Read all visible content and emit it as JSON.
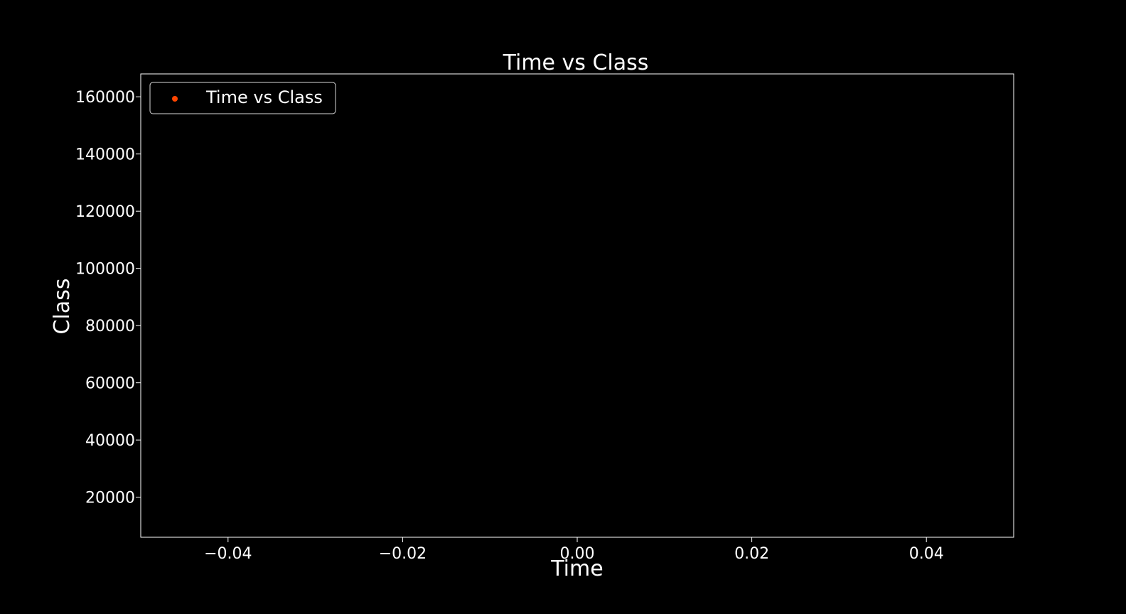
{
  "chart_data": {
    "type": "scatter",
    "title": "Time vs Class",
    "xlabel": "Time",
    "ylabel": "Class",
    "xlim": [
      -0.05,
      0.05
    ],
    "ylim": [
      6000,
      168000
    ],
    "xticks": [
      -0.04,
      -0.02,
      0.0,
      0.02,
      0.04
    ],
    "xtick_labels": [
      "−0.04",
      "−0.02",
      "0.00",
      "0.02",
      "0.04"
    ],
    "yticks": [
      20000,
      40000,
      60000,
      80000,
      100000,
      120000,
      140000,
      160000
    ],
    "ytick_labels": [
      "20000",
      "40000",
      "60000",
      "80000",
      "100000",
      "120000",
      "140000",
      "160000"
    ],
    "series": [
      {
        "name": "Time vs Class",
        "color": "#ff4500",
        "points": []
      }
    ],
    "legend_position": "top-left",
    "grid": false,
    "colors": {
      "background": "#000000",
      "foreground": "#ffffff",
      "series": "#ff4500"
    }
  }
}
